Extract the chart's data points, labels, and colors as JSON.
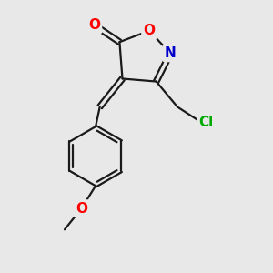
{
  "bg_color": "#e8e8e8",
  "bond_color": "#1a1a1a",
  "bond_width": 1.6,
  "atom_colors": {
    "O": "#ff0000",
    "N": "#0000cc",
    "Cl": "#00aa00",
    "C": "#1a1a1a"
  },
  "font_size_atom": 11,
  "figsize": [
    3.0,
    3.0
  ],
  "dpi": 100,
  "xlim": [
    0.0,
    8.0
  ],
  "ylim": [
    0.5,
    10.0
  ]
}
